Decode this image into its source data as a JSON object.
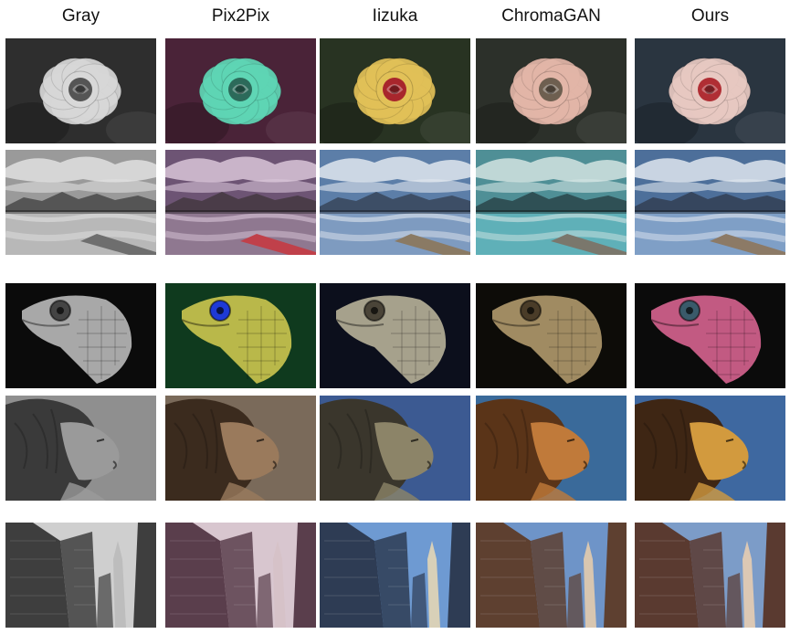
{
  "columns": [
    {
      "label": "Gray"
    },
    {
      "label": "Pix2Pix"
    },
    {
      "label": "Iizuka"
    },
    {
      "label": "ChromaGAN"
    },
    {
      "label": "Ours"
    }
  ],
  "rows": [
    {
      "subject": "rose"
    },
    {
      "subject": "mountain-lake"
    },
    {
      "subject": "lizard"
    },
    {
      "subject": "lion"
    },
    {
      "subject": "skyscrapers"
    }
  ],
  "palettes": {
    "rose": [
      {
        "bg": "#2e2e2e",
        "petal": "#d8d8d8",
        "core": "#555555"
      },
      {
        "bg": "#4a2338",
        "petal": "#5fd6b5",
        "core": "#2c6a5a"
      },
      {
        "bg": "#283322",
        "petal": "#e2c158",
        "core": "#a8262c"
      },
      {
        "bg": "#2c302a",
        "petal": "#e3b6a8",
        "core": "#6e5f50"
      },
      {
        "bg": "#2a3540",
        "petal": "#e8c9c2",
        "core": "#b02e34"
      }
    ],
    "mountain-lake": [
      {
        "sky": "#9a9a9a",
        "cloud": "#e0e0e0",
        "mtn": "#555555",
        "water": "#b8b8b8",
        "dock": "#6e6e6e"
      },
      {
        "sky": "#6d5474",
        "cloud": "#d9c5d8",
        "mtn": "#4a3c48",
        "water": "#8f7890",
        "dock": "#c0404a"
      },
      {
        "sky": "#5c7ea8",
        "cloud": "#dfe6ee",
        "mtn": "#3d4e66",
        "water": "#7e9bc0",
        "dock": "#8a7a64"
      },
      {
        "sky": "#4f8f96",
        "cloud": "#d2e4e2",
        "mtn": "#2f5055",
        "water": "#5fb0b8",
        "dock": "#7a776c"
      },
      {
        "sky": "#4d6f9a",
        "cloud": "#dfe6ef",
        "mtn": "#36465e",
        "water": "#7f9fc6",
        "dock": "#8c7a66"
      }
    ],
    "lizard": [
      {
        "bg": "#0b0b0b",
        "body": "#a8a8a8",
        "eye": "#444444"
      },
      {
        "bg": "#0f3a1e",
        "body": "#b9b84a",
        "eye": "#1e3ad6"
      },
      {
        "bg": "#0c0f1c",
        "body": "#a6a18c",
        "eye": "#4a4438"
      },
      {
        "bg": "#0d0c08",
        "body": "#a08b62",
        "eye": "#4a3c28"
      },
      {
        "bg": "#0b0b0b",
        "body": "#c25a82",
        "eye": "#3a5a6a"
      }
    ],
    "lion": [
      {
        "bg": "#8f8f8f",
        "mane": "#3a3a3a",
        "face": "#9a9a9a"
      },
      {
        "bg": "#7a6a5a",
        "mane": "#3b2b1e",
        "face": "#9a7a5c"
      },
      {
        "bg": "#3c5a92",
        "mane": "#3a362c",
        "face": "#8c8468"
      },
      {
        "bg": "#3a6a9a",
        "mane": "#5a3418",
        "face": "#c07a3a"
      },
      {
        "bg": "#3e68a0",
        "mane": "#3e2614",
        "face": "#d29a3e"
      }
    ],
    "skyscrapers": [
      {
        "sky": "#cfcfcf",
        "bldg": "#3e3e3e",
        "tower": "#bdbdbd"
      },
      {
        "sky": "#d8c6cf",
        "bldg": "#5a3e4c",
        "tower": "#d6c2c8"
      },
      {
        "sky": "#6e9ad2",
        "bldg": "#2e3c54",
        "tower": "#d8d0b8"
      },
      {
        "sky": "#6e94c8",
        "bldg": "#5e4030",
        "tower": "#d8c6b0"
      },
      {
        "sky": "#7c9cc8",
        "bldg": "#5a3a30",
        "tower": "#dcc8b4"
      }
    ]
  }
}
